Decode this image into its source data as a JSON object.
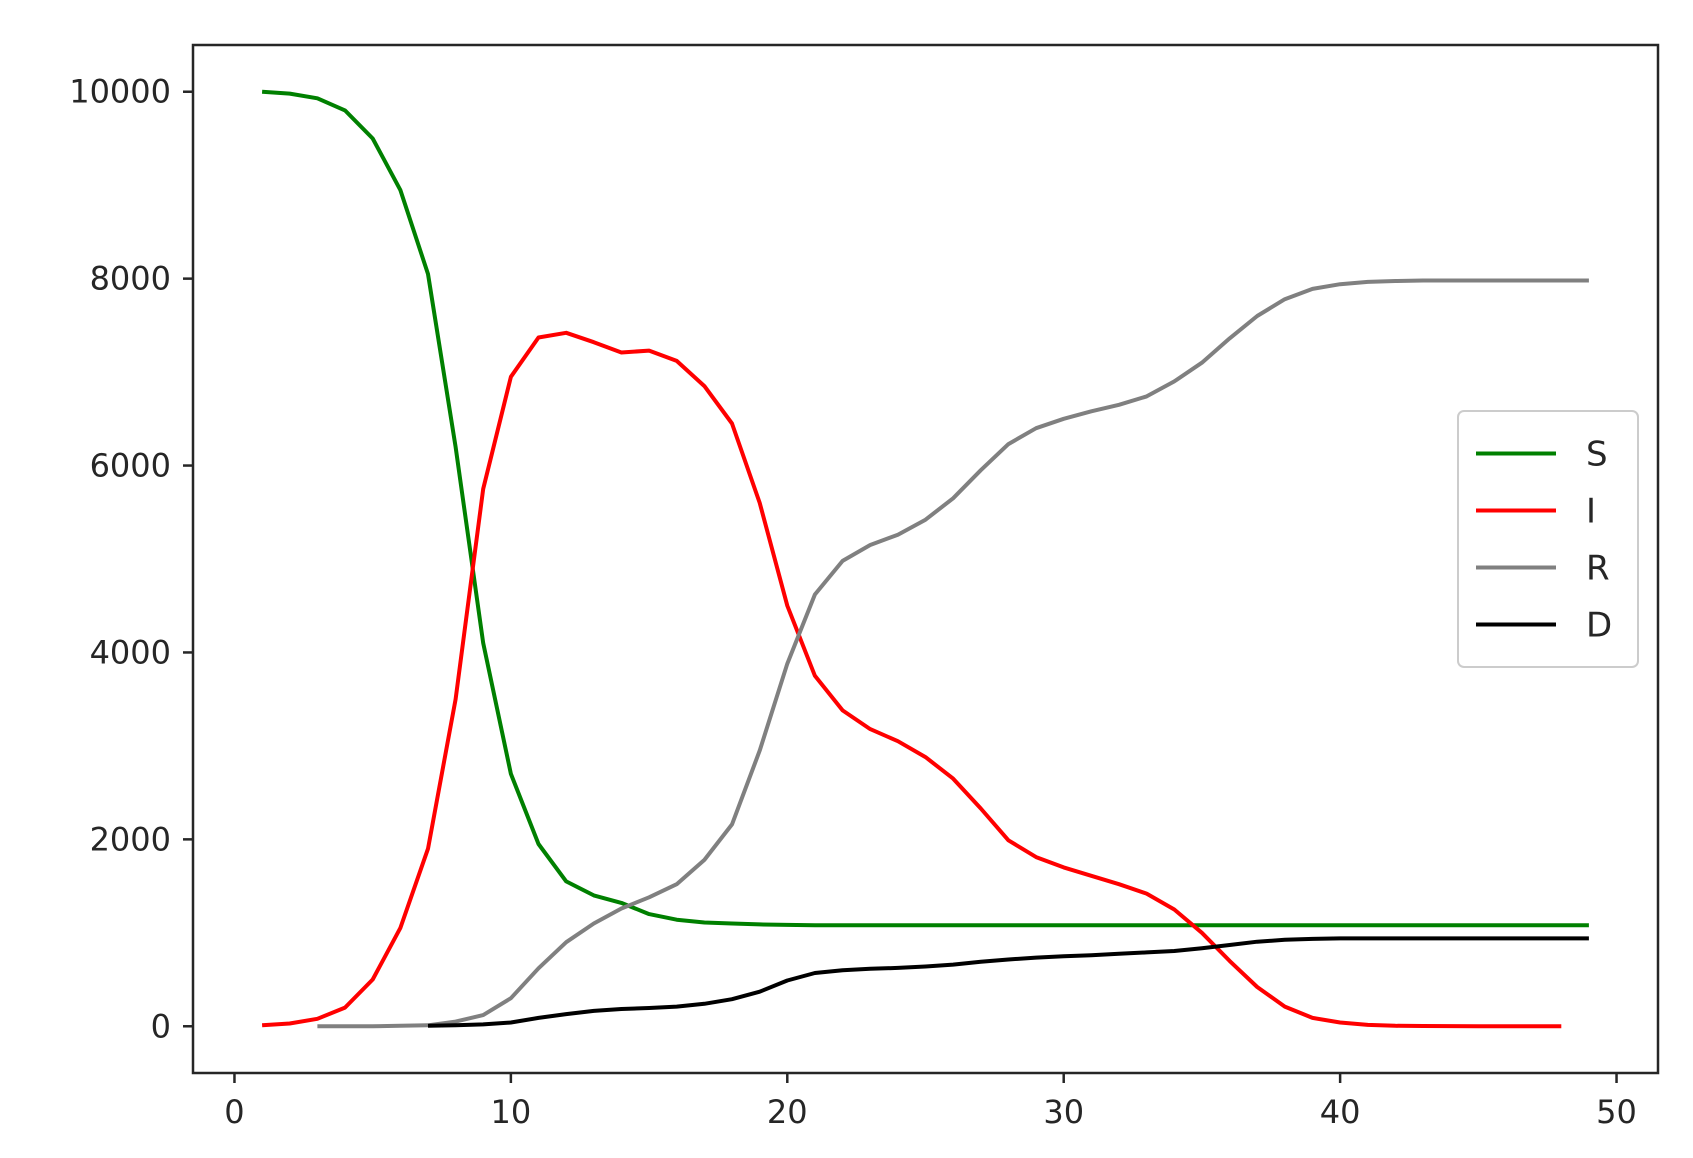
{
  "chart_data": {
    "type": "line",
    "title": "",
    "xlabel": "",
    "ylabel": "",
    "xlim": [
      -1.5,
      51.5
    ],
    "ylim": [
      -500,
      10500
    ],
    "x_ticks": [
      0,
      10,
      20,
      30,
      40,
      50
    ],
    "y_ticks": [
      0,
      2000,
      4000,
      6000,
      8000,
      10000
    ],
    "x_tick_labels": [
      "0",
      "10",
      "20",
      "30",
      "40",
      "50"
    ],
    "y_tick_labels": [
      "0",
      "2000",
      "4000",
      "6000",
      "8000",
      "10000"
    ],
    "grid": false,
    "legend": {
      "position": "center-right"
    },
    "series": [
      {
        "name": "S",
        "color": "#008000",
        "x": [
          1,
          2,
          3,
          4,
          5,
          6,
          7,
          8,
          9,
          10,
          11,
          12,
          13,
          14,
          15,
          16,
          17,
          18,
          19,
          20,
          21,
          22,
          23,
          24,
          25,
          26,
          27,
          28,
          29,
          30,
          31,
          32,
          33,
          34,
          35,
          36,
          37,
          38,
          39,
          40,
          41,
          42,
          43,
          44,
          45,
          46,
          47,
          48,
          49
        ],
        "y": [
          10000,
          9980,
          9930,
          9800,
          9500,
          8950,
          8050,
          6200,
          4100,
          2700,
          1950,
          1550,
          1400,
          1320,
          1200,
          1140,
          1110,
          1100,
          1090,
          1085,
          1080,
          1080,
          1080,
          1080,
          1080,
          1080,
          1080,
          1080,
          1080,
          1080,
          1080,
          1080,
          1080,
          1080,
          1080,
          1080,
          1080,
          1080,
          1080,
          1080,
          1080,
          1080,
          1080,
          1080,
          1080,
          1080,
          1080,
          1080,
          1080
        ]
      },
      {
        "name": "I",
        "color": "#ff0000",
        "x": [
          1,
          2,
          3,
          4,
          5,
          6,
          7,
          8,
          9,
          10,
          11,
          12,
          13,
          14,
          15,
          16,
          17,
          18,
          19,
          20,
          21,
          22,
          23,
          24,
          25,
          26,
          27,
          28,
          29,
          30,
          31,
          32,
          33,
          34,
          35,
          36,
          37,
          38,
          39,
          40,
          41,
          42,
          43,
          44,
          45,
          46,
          47,
          48
        ],
        "y": [
          10,
          30,
          80,
          200,
          500,
          1050,
          1900,
          3500,
          5750,
          6950,
          7370,
          7420,
          7320,
          7210,
          7230,
          7120,
          6850,
          6450,
          5600,
          4500,
          3750,
          3380,
          3180,
          3050,
          2880,
          2650,
          2330,
          1990,
          1810,
          1700,
          1610,
          1520,
          1420,
          1250,
          1000,
          700,
          420,
          210,
          90,
          40,
          15,
          5,
          3,
          2,
          1,
          1,
          1,
          1
        ]
      },
      {
        "name": "R",
        "color": "#808080",
        "x": [
          3,
          4,
          5,
          6,
          7,
          8,
          9,
          10,
          11,
          12,
          13,
          14,
          15,
          16,
          17,
          18,
          19,
          20,
          21,
          22,
          23,
          24,
          25,
          26,
          27,
          28,
          29,
          30,
          31,
          32,
          33,
          34,
          35,
          36,
          37,
          38,
          39,
          40,
          41,
          42,
          43,
          44,
          45,
          46,
          47,
          48,
          49
        ],
        "y": [
          0,
          0,
          0,
          5,
          10,
          50,
          120,
          300,
          620,
          900,
          1100,
          1260,
          1380,
          1520,
          1780,
          2160,
          2950,
          3880,
          4620,
          4980,
          5150,
          5260,
          5420,
          5650,
          5950,
          6230,
          6400,
          6500,
          6580,
          6650,
          6740,
          6900,
          7100,
          7360,
          7600,
          7780,
          7890,
          7940,
          7965,
          7975,
          7980,
          7980,
          7980,
          7980,
          7980,
          7980,
          7980
        ]
      },
      {
        "name": "D",
        "color": "#000000",
        "x": [
          7,
          8,
          9,
          10,
          11,
          12,
          13,
          14,
          15,
          16,
          17,
          18,
          19,
          20,
          21,
          22,
          23,
          24,
          25,
          26,
          27,
          28,
          29,
          30,
          31,
          32,
          33,
          34,
          35,
          36,
          37,
          38,
          39,
          40,
          41,
          42,
          43,
          44,
          45,
          46,
          47,
          48,
          49
        ],
        "y": [
          5,
          10,
          20,
          40,
          90,
          130,
          165,
          185,
          195,
          210,
          240,
          290,
          370,
          490,
          570,
          600,
          615,
          625,
          640,
          660,
          690,
          715,
          735,
          750,
          760,
          775,
          790,
          805,
          835,
          870,
          905,
          925,
          935,
          940,
          940,
          940,
          940,
          940,
          940,
          940,
          940,
          940,
          940
        ]
      }
    ]
  }
}
